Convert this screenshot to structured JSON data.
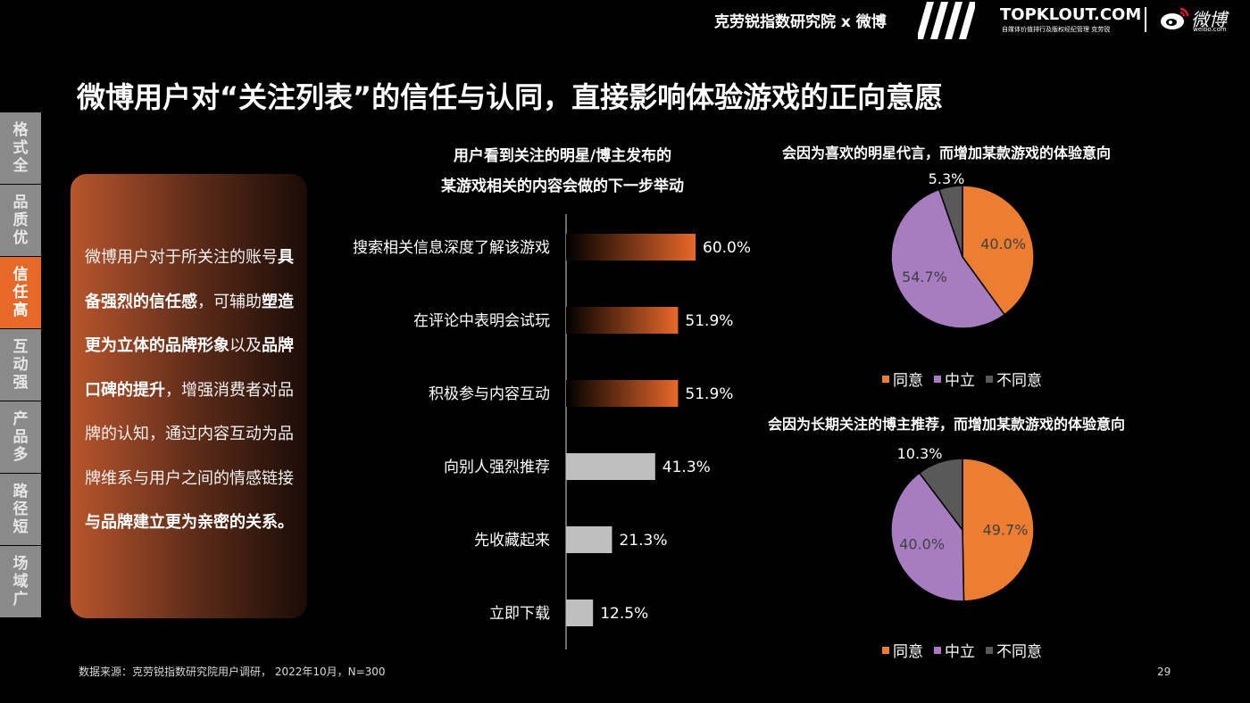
{
  "header": {
    "brand": "克劳锐指数研究院 x 微博",
    "topklout": "TOPKLOUT.COM",
    "topklout_sub": "自媒体价值排行及版权经纪管理 克劳锐",
    "weibo": "微博",
    "weibo_sub": "weibo.com"
  },
  "title": "微博用户对“关注列表”的信任与认同，直接影响体验游戏的正向意愿",
  "tabs": [
    "格式全",
    "品质优",
    "信任高",
    "互动强",
    "产品多",
    "路径短",
    "场域广"
  ],
  "active_tab": 2,
  "panel": {
    "segments": [
      {
        "text": "微博用户对于所关注的账号",
        "bold": false
      },
      {
        "text": "具备强烈的信任感",
        "bold": true
      },
      {
        "text": "，可辅助",
        "bold": false
      },
      {
        "text": "塑造更为立体的品牌形象",
        "bold": true
      },
      {
        "text": "以及",
        "bold": false
      },
      {
        "text": "品牌口碑的提升",
        "bold": true
      },
      {
        "text": "，增强消费者对品牌的认知，通过内容互动为品牌维系与用户之间的情感链接",
        "bold": false
      },
      {
        "text": "与品牌建立更为亲密的关系。",
        "bold": true
      }
    ]
  },
  "chart_data": [
    {
      "type": "bar",
      "orientation": "horizontal",
      "title": "用户看到关注的明星/博主发布的\n某游戏相关的内容会做的下一步举动",
      "categories": [
        "搜索相关信息深度了解该游戏",
        "在评论中表明会试玩",
        "积极参与内容互动",
        "向别人强烈推荐",
        "先收藏起来",
        "立即下载"
      ],
      "values": [
        60.0,
        51.9,
        51.9,
        41.3,
        21.3,
        12.5
      ],
      "value_labels": [
        "60.0%",
        "51.9%",
        "51.9%",
        "41.3%",
        "21.3%",
        "12.5%"
      ],
      "highlight_top": 3,
      "colors": {
        "highlight": "#e8682a",
        "normal": "#bfbfbf"
      },
      "xlim": [
        0,
        100
      ]
    },
    {
      "type": "pie",
      "title": "会因为喜欢的明星代言，而增加某款游戏的体验意向",
      "labels": [
        "同意",
        "中立",
        "不同意"
      ],
      "values": [
        40.0,
        54.7,
        5.3
      ],
      "value_labels": [
        "40.0%",
        "54.7%",
        "5.3%"
      ],
      "colors": [
        "#ed7d31",
        "#a77dbf",
        "#595959"
      ],
      "legend": "bottom"
    },
    {
      "type": "pie",
      "title": "会因为长期关注的博主推荐，而增加某款游戏的体验意向",
      "labels": [
        "同意",
        "中立",
        "不同意"
      ],
      "values": [
        49.7,
        40.0,
        10.3
      ],
      "value_labels": [
        "49.7%",
        "40.0%",
        "10.3%"
      ],
      "colors": [
        "#ed7d31",
        "#a77dbf",
        "#595959"
      ],
      "legend": "bottom"
    }
  ],
  "footer": {
    "source": "数据来源：克劳锐指数研究院用户调研， 2022年10月，N=300",
    "page": "29"
  }
}
